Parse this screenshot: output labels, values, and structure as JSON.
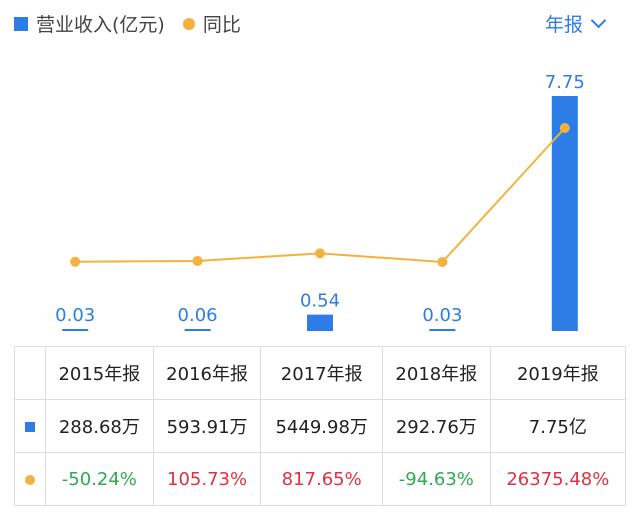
{
  "legend": {
    "revenue_label": "营业收入(亿元)",
    "yoy_label": "同比"
  },
  "period_selector": {
    "label": "年报"
  },
  "colors": {
    "bar": "#2e7de6",
    "line": "#f3b23e",
    "positive": "#e0313f",
    "negative": "#2faa52"
  },
  "chart_data": {
    "type": "bar",
    "categories": [
      "2015年报",
      "2016年报",
      "2017年报",
      "2018年报",
      "2019年报"
    ],
    "series": [
      {
        "name": "营业收入(亿元)",
        "type": "bar",
        "values": [
          0.03,
          0.06,
          0.54,
          0.03,
          7.75
        ],
        "labels": [
          "0.03",
          "0.06",
          "0.54",
          "0.03",
          "7.75"
        ]
      },
      {
        "name": "同比",
        "type": "line",
        "values": [
          -50.24,
          105.73,
          817.65,
          -94.63,
          26375.48
        ]
      }
    ],
    "grid": false,
    "legend": "top-left"
  },
  "table": {
    "headers": [
      "2015年报",
      "2016年报",
      "2017年报",
      "2018年报",
      "2019年报"
    ],
    "revenue_row": [
      "288.68万",
      "593.91万",
      "5449.98万",
      "292.76万",
      "7.75亿"
    ],
    "yoy_row": [
      "-50.24%",
      "105.73%",
      "817.65%",
      "-94.63%",
      "26375.48%"
    ]
  }
}
